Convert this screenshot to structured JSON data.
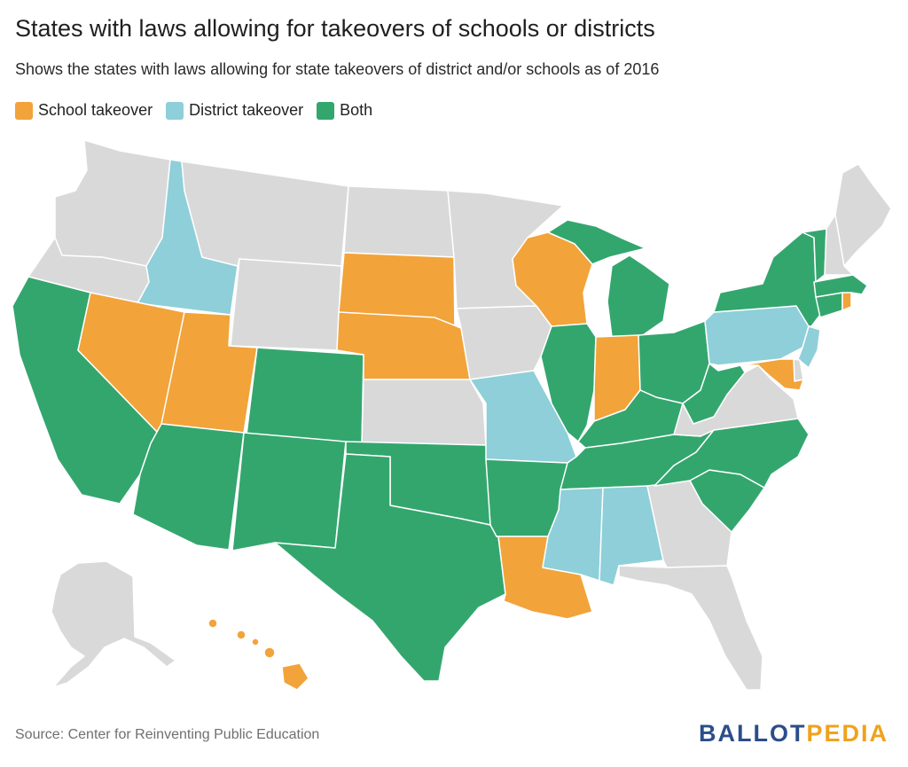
{
  "title": "States with laws allowing for takeovers of schools or districts",
  "subtitle": "Shows the states with laws allowing for state takeovers of district and/or schools as of 2016",
  "legend": [
    {
      "label": "School takeover",
      "color": "#f2a33a"
    },
    {
      "label": "District takeover",
      "color": "#8ecfd9"
    },
    {
      "label": "Both",
      "color": "#33a66e"
    }
  ],
  "no_law_color": "#d9d9d9",
  "source": "Source: Center for Reinventing Public Education",
  "logo": {
    "part1": "BALLOT",
    "part2": "PEDIA"
  },
  "states": {
    "WA": "none",
    "OR": "none",
    "CA": "both",
    "ID": "district",
    "NV": "school",
    "MT": "none",
    "WY": "none",
    "UT": "school",
    "AZ": "both",
    "CO": "both",
    "NM": "both",
    "ND": "none",
    "SD": "school",
    "NE": "school",
    "KS": "none",
    "OK": "both",
    "TX": "both",
    "MN": "none",
    "IA": "none",
    "MO": "district",
    "AR": "both",
    "LA": "school",
    "WI": "school",
    "IL": "both",
    "MI": "both",
    "IN": "school",
    "OH": "both",
    "KY": "both",
    "TN": "both",
    "MS": "district",
    "AL": "district",
    "GA": "none",
    "FL": "none",
    "SC": "both",
    "NC": "both",
    "VA": "none",
    "WV": "both",
    "PA": "district",
    "NY": "both",
    "VT": "both",
    "NH": "none",
    "ME": "none",
    "MA": "both",
    "RI": "school",
    "CT": "both",
    "NJ": "district",
    "DE": "none",
    "MD": "school",
    "AK": "none",
    "HI": "school"
  }
}
